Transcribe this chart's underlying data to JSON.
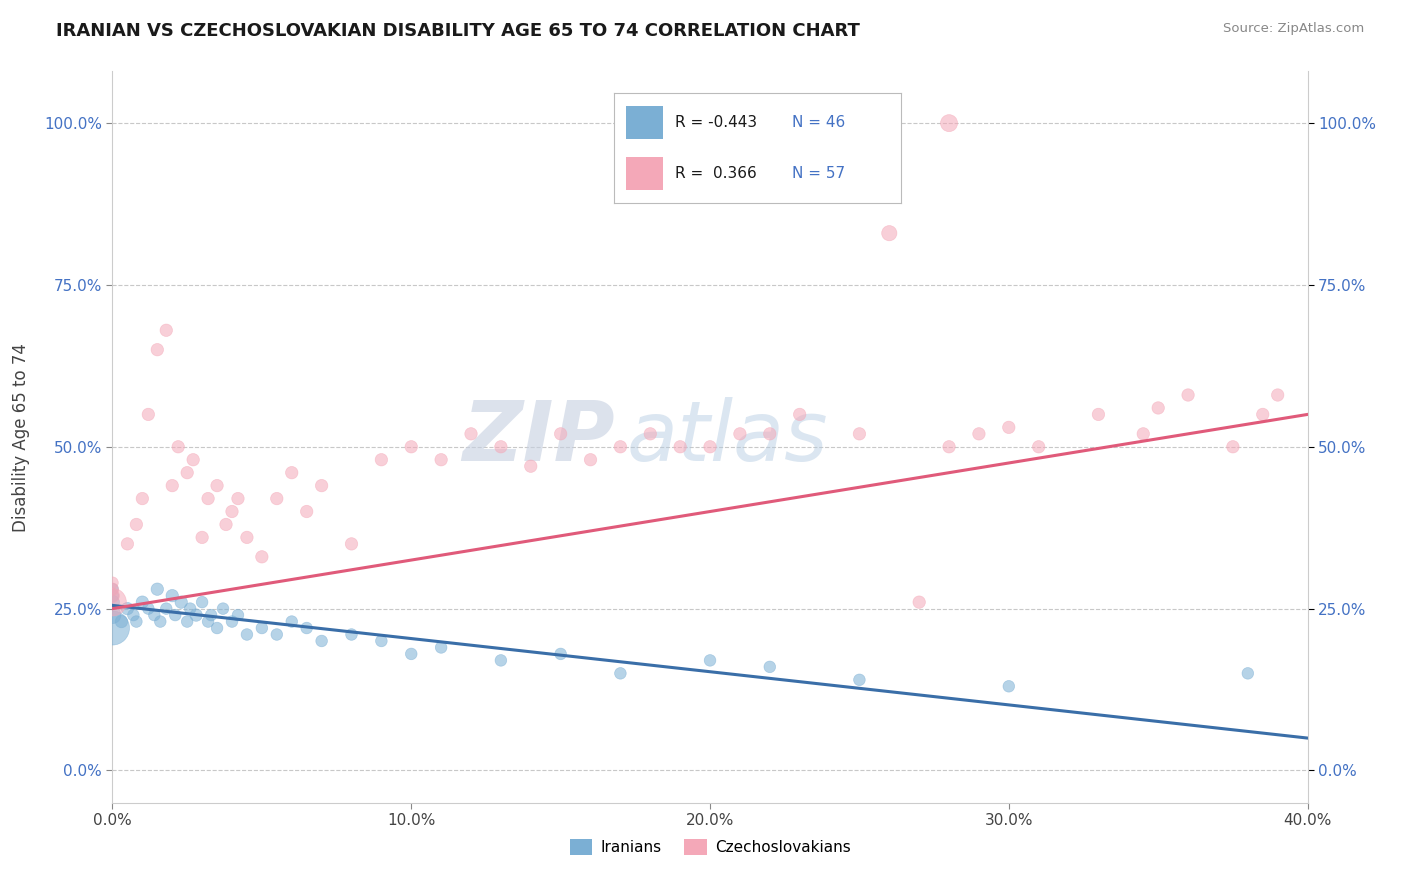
{
  "title": "IRANIAN VS CZECHOSLOVAKIAN DISABILITY AGE 65 TO 74 CORRELATION CHART",
  "source": "Source: ZipAtlas.com",
  "xlabel_ticks": [
    "0.0%",
    "10.0%",
    "20.0%",
    "30.0%",
    "40.0%"
  ],
  "xlabel_vals": [
    0.0,
    10.0,
    20.0,
    30.0,
    40.0
  ],
  "ylabel_ticks": [
    "0.0%",
    "25.0%",
    "50.0%",
    "75.0%",
    "100.0%"
  ],
  "ylabel_vals": [
    0.0,
    25.0,
    50.0,
    75.0,
    100.0
  ],
  "ylabel_label": "Disability Age 65 to 74",
  "xmin": 0.0,
  "xmax": 40.0,
  "ymin": -5.0,
  "ymax": 108.0,
  "iranian_color": "#7bafd4",
  "czech_color": "#f4a8b8",
  "iranian_line_color": "#3a6ea8",
  "czech_line_color": "#e05a7a",
  "iranian_R": -0.443,
  "iranian_N": 46,
  "czech_R": 0.366,
  "czech_N": 57,
  "legend_label_iranian": "Iranians",
  "legend_label_czech": "Czechoslovakians",
  "background_color": "#ffffff",
  "grid_color": "#c8c8c8",
  "watermark_zip": "ZIP",
  "watermark_atlas": "atlas",
  "iranian_x": [
    0.0,
    0.0,
    0.0,
    0.0,
    0.0,
    0.3,
    0.5,
    0.7,
    0.8,
    1.0,
    1.2,
    1.4,
    1.5,
    1.6,
    1.8,
    2.0,
    2.1,
    2.3,
    2.5,
    2.6,
    2.8,
    3.0,
    3.2,
    3.3,
    3.5,
    3.7,
    4.0,
    4.2,
    4.5,
    5.0,
    5.5,
    6.0,
    6.5,
    7.0,
    8.0,
    9.0,
    10.0,
    11.0,
    13.0,
    15.0,
    17.0,
    20.0,
    22.0,
    25.0,
    30.0,
    38.0
  ],
  "iranian_y": [
    22.0,
    24.0,
    26.0,
    27.0,
    28.0,
    23.0,
    25.0,
    24.0,
    23.0,
    26.0,
    25.0,
    24.0,
    28.0,
    23.0,
    25.0,
    27.0,
    24.0,
    26.0,
    23.0,
    25.0,
    24.0,
    26.0,
    23.0,
    24.0,
    22.0,
    25.0,
    23.0,
    24.0,
    21.0,
    22.0,
    21.0,
    23.0,
    22.0,
    20.0,
    21.0,
    20.0,
    18.0,
    19.0,
    17.0,
    18.0,
    15.0,
    17.0,
    16.0,
    14.0,
    13.0,
    15.0
  ],
  "iranian_sizes": [
    600,
    150,
    100,
    80,
    70,
    80,
    80,
    70,
    70,
    80,
    70,
    70,
    80,
    70,
    70,
    80,
    70,
    80,
    70,
    70,
    80,
    70,
    70,
    70,
    70,
    70,
    70,
    70,
    70,
    70,
    70,
    70,
    70,
    70,
    70,
    70,
    70,
    70,
    70,
    70,
    70,
    70,
    70,
    70,
    70,
    70
  ],
  "czech_x": [
    0.0,
    0.0,
    0.0,
    0.0,
    0.5,
    0.8,
    1.0,
    1.2,
    1.5,
    1.8,
    2.0,
    2.2,
    2.5,
    2.7,
    3.0,
    3.2,
    3.5,
    3.8,
    4.0,
    4.2,
    4.5,
    5.0,
    5.5,
    6.0,
    6.5,
    7.0,
    8.0,
    9.0,
    10.0,
    11.0,
    12.0,
    13.0,
    14.0,
    15.0,
    16.0,
    17.0,
    18.0,
    19.0,
    20.0,
    21.0,
    22.0,
    23.0,
    25.0,
    27.0,
    28.0,
    29.0,
    30.0,
    31.0,
    33.0,
    34.5,
    35.0,
    36.0,
    37.5,
    38.5,
    39.0,
    26.0,
    28.0
  ],
  "czech_y": [
    26.0,
    27.0,
    28.0,
    29.0,
    35.0,
    38.0,
    42.0,
    55.0,
    65.0,
    68.0,
    44.0,
    50.0,
    46.0,
    48.0,
    36.0,
    42.0,
    44.0,
    38.0,
    40.0,
    42.0,
    36.0,
    33.0,
    42.0,
    46.0,
    40.0,
    44.0,
    35.0,
    48.0,
    50.0,
    48.0,
    52.0,
    50.0,
    47.0,
    52.0,
    48.0,
    50.0,
    52.0,
    50.0,
    50.0,
    52.0,
    52.0,
    55.0,
    52.0,
    26.0,
    50.0,
    52.0,
    53.0,
    50.0,
    55.0,
    52.0,
    56.0,
    58.0,
    50.0,
    55.0,
    58.0,
    83.0,
    100.0
  ],
  "czech_sizes": [
    400,
    100,
    80,
    70,
    80,
    80,
    80,
    80,
    80,
    80,
    80,
    80,
    80,
    80,
    80,
    80,
    80,
    80,
    80,
    80,
    80,
    80,
    80,
    80,
    80,
    80,
    80,
    80,
    80,
    80,
    80,
    80,
    80,
    80,
    80,
    80,
    80,
    80,
    80,
    80,
    80,
    80,
    80,
    80,
    80,
    80,
    80,
    80,
    80,
    80,
    80,
    80,
    80,
    80,
    80,
    120,
    150
  ],
  "iran_line_x0": 0.0,
  "iran_line_x1": 40.0,
  "iran_line_y0": 25.5,
  "iran_line_y1": 5.0,
  "czech_line_x0": 0.0,
  "czech_line_x1": 40.0,
  "czech_line_y0": 25.0,
  "czech_line_y1": 55.0
}
